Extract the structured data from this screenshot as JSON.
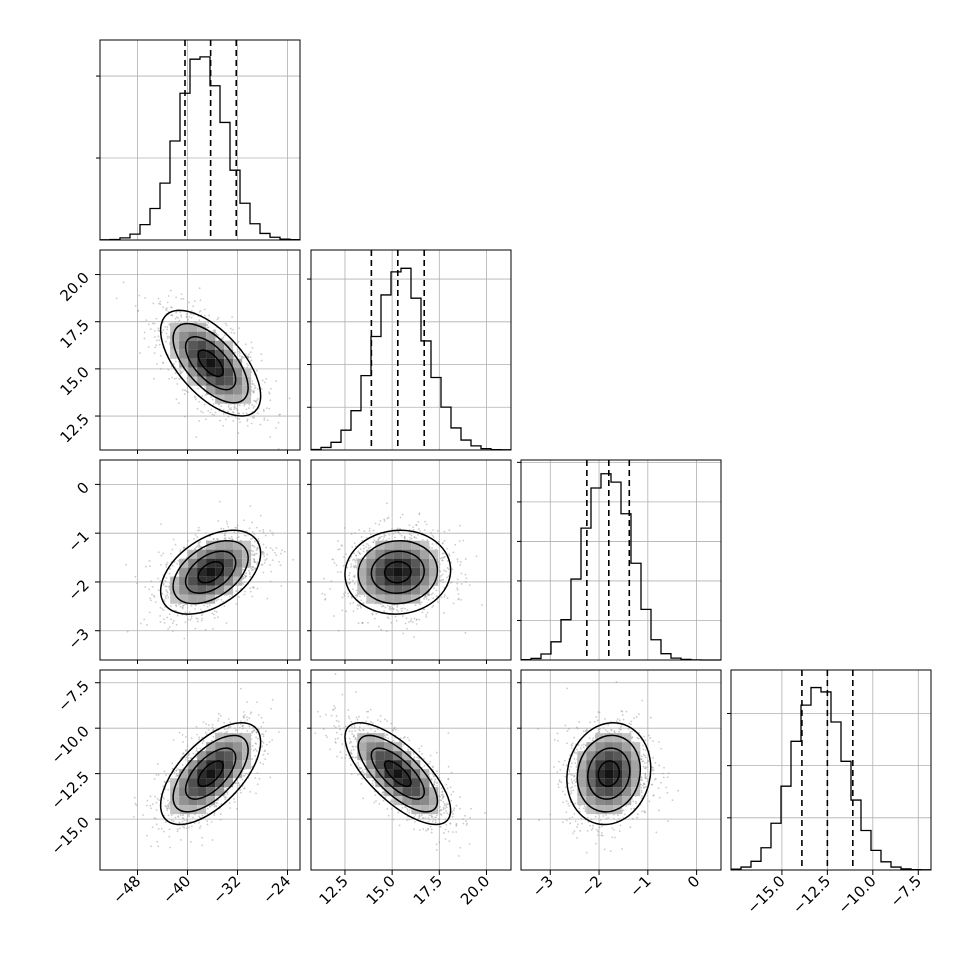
{
  "chart_data": {
    "type": "corner",
    "parameters": [
      {
        "xlim": [
          -54,
          -22
        ],
        "ticks": [
          -48,
          -40,
          -32,
          -24
        ],
        "tick_labels": [
          "−48",
          "−40",
          "−32",
          "−24"
        ],
        "quantiles": [
          -40.4,
          -36.3,
          -32.2
        ],
        "hist_edges": [
          -54,
          -52.4,
          -50.8,
          -49.2,
          -47.6,
          -46,
          -44.4,
          -42.8,
          -41.2,
          -39.6,
          -38,
          -36.4,
          -34.8,
          -33.2,
          -31.6,
          -30,
          -28.4,
          -26.8,
          -25.2,
          -23.6,
          -22
        ],
        "hist_values": [
          1,
          3,
          13,
          36,
          94,
          192,
          347,
          604,
          895,
          1103,
          1117,
          941,
          717,
          426,
          224,
          99,
          40,
          17,
          5,
          2
        ],
        "hist_ylim": [
          0,
          1220
        ],
        "hist_grid": [
          0,
          500,
          1000
        ]
      },
      {
        "xlim": [
          10.7,
          21.3
        ],
        "ticks": [
          12.5,
          15.0,
          17.5,
          20.0
        ],
        "tick_labels": [
          "12.5",
          "15.0",
          "17.5",
          "20.0"
        ],
        "quantiles": [
          13.9,
          15.3,
          16.7
        ],
        "hist_edges": [
          10.7,
          11.23,
          11.76,
          12.29,
          12.82,
          13.35,
          13.88,
          14.41,
          14.94,
          15.47,
          16.0,
          16.53,
          17.06,
          17.59,
          18.12,
          18.65,
          19.18,
          19.71,
          20.24,
          20.77,
          21.3
        ],
        "hist_values": [
          3,
          15,
          45,
          116,
          230,
          435,
          664,
          907,
          1042,
          1063,
          888,
          638,
          424,
          251,
          129,
          58,
          24,
          8,
          2,
          1
        ],
        "hist_ylim": [
          0,
          1170
        ],
        "hist_grid": [
          0,
          250,
          500,
          750,
          1000
        ]
      },
      {
        "xlim": [
          -3.6,
          0.5
        ],
        "ticks": [
          -3,
          -2,
          -1,
          0
        ],
        "tick_labels": [
          "−3",
          "−2",
          "−1",
          "0"
        ],
        "quantiles": [
          -2.25,
          -1.8,
          -1.38
        ],
        "hist_edges": [
          -3.6,
          -3.395,
          -3.19,
          -2.985,
          -2.78,
          -2.575,
          -2.37,
          -2.165,
          -1.96,
          -1.755,
          -1.55,
          -1.345,
          -1.14,
          -0.935,
          -0.73,
          -0.525,
          -0.32,
          -0.115,
          0.09,
          0.295,
          0.5
        ],
        "hist_values": [
          2,
          10,
          38,
          115,
          255,
          512,
          834,
          1088,
          1178,
          1125,
          925,
          612,
          320,
          128,
          40,
          12,
          4,
          1,
          0,
          0
        ],
        "hist_ylim": [
          0,
          1265
        ],
        "hist_grid": [
          0,
          250,
          500,
          750,
          1000,
          1250
        ]
      },
      {
        "xlim": [
          -17.8,
          -6.8
        ],
        "ticks": [
          -15.0,
          -12.5,
          -10.0,
          -7.5
        ],
        "tick_labels": [
          "−15.0",
          "−12.5",
          "−10.0",
          "−7.5"
        ],
        "quantiles": [
          -13.9,
          -12.5,
          -11.1
        ],
        "hist_edges": [
          -17.8,
          -17.25,
          -16.7,
          -16.15,
          -15.6,
          -15.05,
          -14.5,
          -13.95,
          -13.4,
          -12.85,
          -12.3,
          -11.75,
          -11.2,
          -10.65,
          -10.1,
          -9.55,
          -9.0,
          -8.45,
          -7.9,
          -7.35,
          -6.8
        ],
        "hist_values": [
          5,
          17,
          50,
          128,
          269,
          482,
          740,
          948,
          1049,
          1024,
          851,
          625,
          402,
          227,
          113,
          47,
          17,
          6,
          2,
          1
        ],
        "hist_ylim": [
          0,
          1150
        ],
        "hist_grid": [
          0,
          300,
          600,
          900
        ]
      }
    ],
    "pairs": [
      {
        "x": 0,
        "y": 1,
        "ylim": [
          10.7,
          21.3
        ],
        "yticks": [
          12.5,
          15.0,
          17.5,
          20.0
        ],
        "ytick_labels": [
          "12.5",
          "15.0",
          "17.5",
          "20.0"
        ],
        "center": [
          -36.3,
          15.3
        ],
        "sd": [
          4.0,
          1.4
        ],
        "rho": -0.62
      },
      {
        "x": 0,
        "y": 2,
        "ylim": [
          -3.6,
          0.5
        ],
        "yticks": [
          -3,
          -2,
          -1,
          0
        ],
        "ytick_labels": [
          "−3",
          "−2",
          "−1",
          "0"
        ],
        "center": [
          -36.3,
          -1.8
        ],
        "sd": [
          4.0,
          0.43
        ],
        "rho": 0.45
      },
      {
        "x": 1,
        "y": 2,
        "center": [
          15.3,
          -1.8
        ],
        "sd": [
          1.4,
          0.43
        ],
        "rho": 0.05
      },
      {
        "x": 0,
        "y": 3,
        "ylim": [
          -17.8,
          -6.8
        ],
        "yticks": [
          -15.0,
          -12.5,
          -10.0,
          -7.5
        ],
        "ytick_labels": [
          "−15.0",
          "−12.5",
          "−10.0",
          "−7.5"
        ],
        "center": [
          -36.3,
          -12.5
        ],
        "sd": [
          4.0,
          1.4
        ],
        "rho": 0.62
      },
      {
        "x": 1,
        "y": 3,
        "center": [
          15.3,
          -12.5
        ],
        "sd": [
          1.4,
          1.4
        ],
        "rho": -0.72
      },
      {
        "x": 2,
        "y": 3,
        "center": [
          -1.8,
          -12.5
        ],
        "sd": [
          0.43,
          1.4
        ],
        "rho": 0.1
      }
    ],
    "contour_levels_sigma": [
      0.5,
      1.0,
      1.5,
      2.0
    ],
    "grid": true,
    "colors": {
      "line": "#000000",
      "grid": "#b0b0b0",
      "scatter": "#9a9a9a"
    }
  }
}
